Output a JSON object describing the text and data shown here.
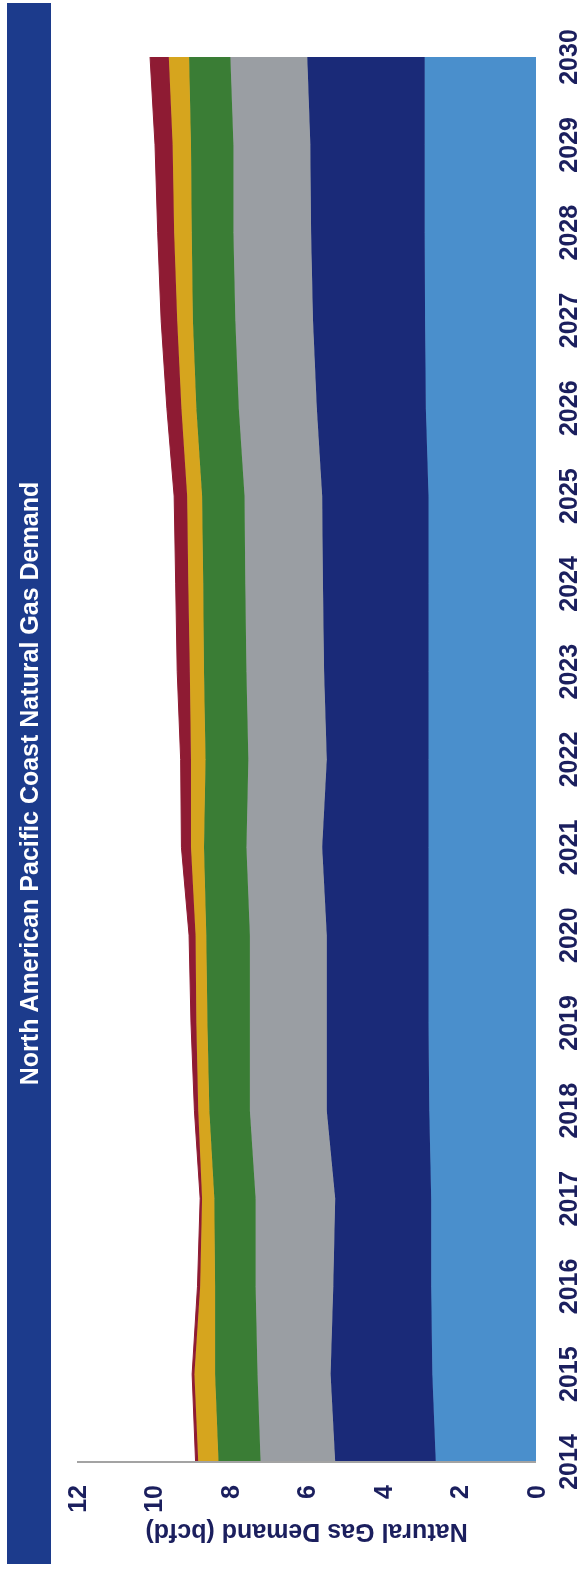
{
  "chart_data": {
    "type": "area",
    "title": "North American Pacific Coast Natural Gas Demand",
    "xlabel": "Natural Gas Demand (bcfd)",
    "orientation": "horizontal",
    "stacked": true,
    "categories": [
      "2030",
      "2029",
      "2028",
      "2027",
      "2026",
      "2025",
      "2024",
      "2023",
      "2022",
      "2021",
      "2020",
      "2019",
      "2018",
      "2017",
      "2016",
      "2015",
      "2014"
    ],
    "series": [
      {
        "color": "#4a8fcc",
        "values": [
          2.91,
          2.91,
          2.91,
          2.9,
          2.88,
          2.81,
          2.81,
          2.81,
          2.81,
          2.81,
          2.81,
          2.81,
          2.79,
          2.74,
          2.74,
          2.71,
          2.62
        ]
      },
      {
        "color": "#1a2a78",
        "values": [
          3.07,
          2.99,
          2.97,
          2.93,
          2.85,
          2.78,
          2.76,
          2.73,
          2.66,
          2.78,
          2.66,
          2.66,
          2.68,
          2.51,
          2.56,
          2.66,
          2.63
        ]
      },
      {
        "color": "#9a9ea3",
        "values": [
          2.01,
          2.01,
          2.03,
          2.03,
          2.04,
          2.03,
          2.03,
          2.03,
          2.05,
          1.98,
          2.01,
          2.01,
          2.01,
          2.08,
          2.03,
          1.91,
          1.95
        ]
      },
      {
        "color": "#3a7d35",
        "values": [
          1.08,
          1.11,
          1.09,
          1.11,
          1.11,
          1.11,
          1.1,
          1.11,
          1.12,
          1.11,
          1.14,
          1.11,
          1.06,
          1.08,
          1.06,
          1.11,
          1.1
        ]
      },
      {
        "color": "#d6a51e",
        "values": [
          0.53,
          0.48,
          0.46,
          0.41,
          0.39,
          0.39,
          0.39,
          0.37,
          0.38,
          0.34,
          0.28,
          0.29,
          0.29,
          0.32,
          0.39,
          0.54,
          0.53
        ]
      },
      {
        "color": "#8e1b33",
        "values": [
          0.49,
          0.46,
          0.43,
          0.42,
          0.38,
          0.34,
          0.33,
          0.33,
          0.27,
          0.25,
          0.17,
          0.14,
          0.1,
          0.05,
          0.07,
          0.06,
          0.07
        ]
      }
    ],
    "xlim": [
      12,
      0
    ],
    "xticks": [
      12,
      10,
      8,
      6,
      4,
      2,
      0
    ]
  }
}
